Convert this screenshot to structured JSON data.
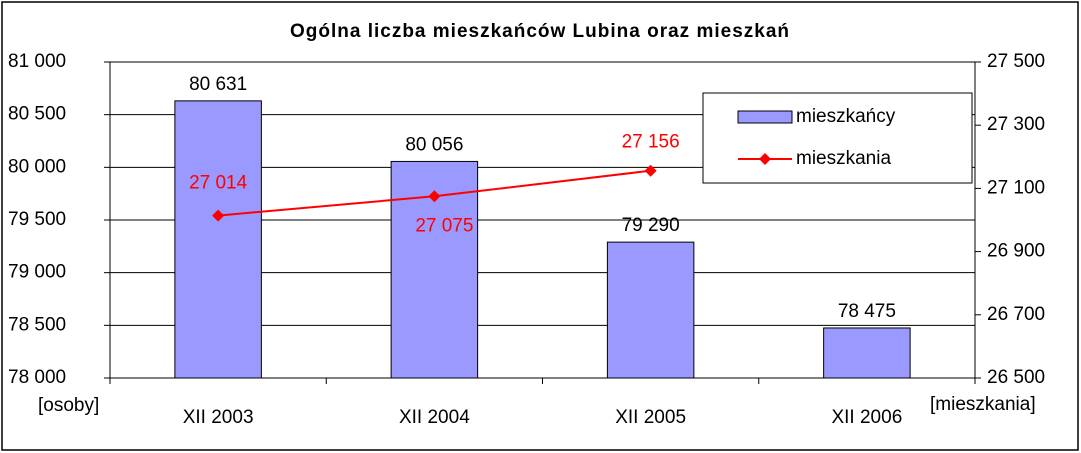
{
  "chart_data": {
    "type": "bar_line",
    "title": "Ogólna liczba mieszkańców Lubina oraz mieszkań",
    "y_label": "[osoby]",
    "y2_label": "[mieszkania]",
    "categories": [
      "XII 2003",
      "XII 2004",
      "XII 2005",
      "XII 2006"
    ],
    "series": [
      {
        "name": "mieszkańcy",
        "type": "bar",
        "color": "#9999ff",
        "values": [
          80631,
          80056,
          79290,
          78475
        ],
        "value_labels": [
          "80 631",
          "80 056",
          "79 290",
          "78 475"
        ]
      },
      {
        "name": "mieszkania",
        "type": "line",
        "axis": "y2",
        "color": "#ff0000",
        "values": [
          27014,
          27075,
          27156,
          null
        ],
        "value_labels": [
          "27 014",
          "27 075",
          "27 156",
          null
        ]
      }
    ],
    "ylim": [
      78000,
      81000
    ],
    "yticks": [
      {
        "value": 78000,
        "label": "78 000"
      },
      {
        "value": 78500,
        "label": "78 500"
      },
      {
        "value": 79000,
        "label": "79 000"
      },
      {
        "value": 79500,
        "label": "79 500"
      },
      {
        "value": 80000,
        "label": "80 000"
      },
      {
        "value": 80500,
        "label": "80 500"
      },
      {
        "value": 81000,
        "label": "81 000"
      }
    ],
    "y2lim": [
      26500,
      27500
    ],
    "y2ticks": [
      {
        "value": 26500,
        "label": "26 500"
      },
      {
        "value": 26700,
        "label": "26 700"
      },
      {
        "value": 26900,
        "label": "26 900"
      },
      {
        "value": 27100,
        "label": "27 100"
      },
      {
        "value": 27300,
        "label": "27 300"
      },
      {
        "value": 27500,
        "label": "27 500"
      }
    ],
    "grid": true,
    "legend": "upper right"
  }
}
